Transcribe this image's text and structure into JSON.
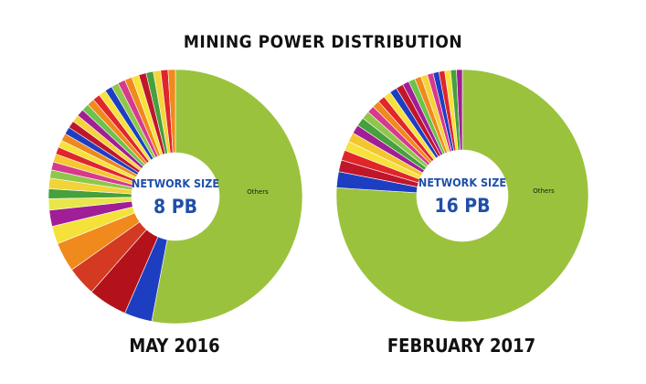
{
  "title": "MINING POWER DISTRIBUTION",
  "chart_data": [
    {
      "type": "pie",
      "caption": "MAY 2016",
      "center_label": "NETWORK SIZE",
      "center_value": "8 PB",
      "others_label": "Others",
      "others_share": 0.53,
      "slices": [
        {
          "label": "",
          "value": 3.4,
          "color": "#1e3ec2"
        },
        {
          "label": "",
          "value": 4.8,
          "color": "#b3121a"
        },
        {
          "label": "",
          "value": 3.6,
          "color": "#d43a22"
        },
        {
          "label": "",
          "value": 3.6,
          "color": "#f08a1c"
        },
        {
          "label": "",
          "value": 2.2,
          "color": "#f4e23a"
        },
        {
          "label": "",
          "value": 2.0,
          "color": "#a01e96"
        },
        {
          "label": "",
          "value": 1.4,
          "color": "#e8e64a"
        },
        {
          "label": "",
          "value": 1.2,
          "color": "#46a03c"
        },
        {
          "label": "",
          "value": 1.3,
          "color": "#f0d438"
        },
        {
          "label": "",
          "value": 1.0,
          "color": "#8fc74a"
        },
        {
          "label": "",
          "value": 1.0,
          "color": "#d63a8c"
        },
        {
          "label": "",
          "value": 1.0,
          "color": "#f6c72e"
        },
        {
          "label": "",
          "value": 0.9,
          "color": "#e0262a"
        },
        {
          "label": "",
          "value": 0.9,
          "color": "#f6e23a"
        },
        {
          "label": "",
          "value": 0.9,
          "color": "#ec8a1e"
        },
        {
          "label": "",
          "value": 0.9,
          "color": "#1e3ec2"
        },
        {
          "label": "",
          "value": 0.9,
          "color": "#c0162a"
        },
        {
          "label": "",
          "value": 0.9,
          "color": "#f4d43a"
        },
        {
          "label": "",
          "value": 0.9,
          "color": "#a21e96"
        },
        {
          "label": "",
          "value": 0.9,
          "color": "#6cc24a"
        },
        {
          "label": "",
          "value": 0.9,
          "color": "#f08a1c"
        },
        {
          "label": "",
          "value": 0.9,
          "color": "#e2262a"
        },
        {
          "label": "",
          "value": 0.9,
          "color": "#f6e23a"
        },
        {
          "label": "",
          "value": 0.9,
          "color": "#1e3ec2"
        },
        {
          "label": "",
          "value": 0.9,
          "color": "#8fc74a"
        },
        {
          "label": "",
          "value": 0.9,
          "color": "#d63a8c"
        },
        {
          "label": "",
          "value": 0.9,
          "color": "#f08a1c"
        },
        {
          "label": "",
          "value": 0.9,
          "color": "#f6e23a"
        },
        {
          "label": "",
          "value": 0.9,
          "color": "#c0162a"
        },
        {
          "label": "",
          "value": 0.9,
          "color": "#46a03c"
        },
        {
          "label": "",
          "value": 0.9,
          "color": "#f4d43a"
        },
        {
          "label": "",
          "value": 0.9,
          "color": "#e0262a"
        },
        {
          "label": "",
          "value": 0.9,
          "color": "#f08a1c"
        }
      ]
    },
    {
      "type": "pie",
      "caption": "FEBRUARY 2017",
      "center_label": "NETWORK SIZE",
      "center_value": "16 PB",
      "others_label": "Others",
      "others_share": 0.76,
      "slices": [
        {
          "label": "",
          "value": 2.2,
          "color": "#1e3ec2"
        },
        {
          "label": "",
          "value": 1.6,
          "color": "#c0162a"
        },
        {
          "label": "",
          "value": 1.4,
          "color": "#e0262a"
        },
        {
          "label": "",
          "value": 1.3,
          "color": "#f6e23a"
        },
        {
          "label": "",
          "value": 1.3,
          "color": "#f4c62e"
        },
        {
          "label": "",
          "value": 1.2,
          "color": "#a01e96"
        },
        {
          "label": "",
          "value": 1.2,
          "color": "#46a03c"
        },
        {
          "label": "",
          "value": 1.1,
          "color": "#8fc74a"
        },
        {
          "label": "",
          "value": 1.0,
          "color": "#d63a8c"
        },
        {
          "label": "",
          "value": 1.0,
          "color": "#f08a1c"
        },
        {
          "label": "",
          "value": 1.0,
          "color": "#e2262a"
        },
        {
          "label": "",
          "value": 1.0,
          "color": "#f6e23a"
        },
        {
          "label": "",
          "value": 1.0,
          "color": "#1e3ec2"
        },
        {
          "label": "",
          "value": 1.0,
          "color": "#c0162a"
        },
        {
          "label": "",
          "value": 0.9,
          "color": "#a21e96"
        },
        {
          "label": "",
          "value": 0.9,
          "color": "#6cc24a"
        },
        {
          "label": "",
          "value": 0.9,
          "color": "#f08a1c"
        },
        {
          "label": "",
          "value": 0.9,
          "color": "#f4d43a"
        },
        {
          "label": "",
          "value": 0.8,
          "color": "#d63a8c"
        },
        {
          "label": "",
          "value": 0.8,
          "color": "#1e3ec2"
        },
        {
          "label": "",
          "value": 0.8,
          "color": "#e0262a"
        },
        {
          "label": "",
          "value": 0.8,
          "color": "#f6e23a"
        },
        {
          "label": "",
          "value": 0.8,
          "color": "#46a03c"
        },
        {
          "label": "",
          "value": 0.8,
          "color": "#a01e96"
        }
      ]
    }
  ],
  "colors": {
    "others": "#9bc23c",
    "center_text": "#1f4fa8",
    "center_fill": "#ffffff",
    "separator": "#ffffff"
  }
}
